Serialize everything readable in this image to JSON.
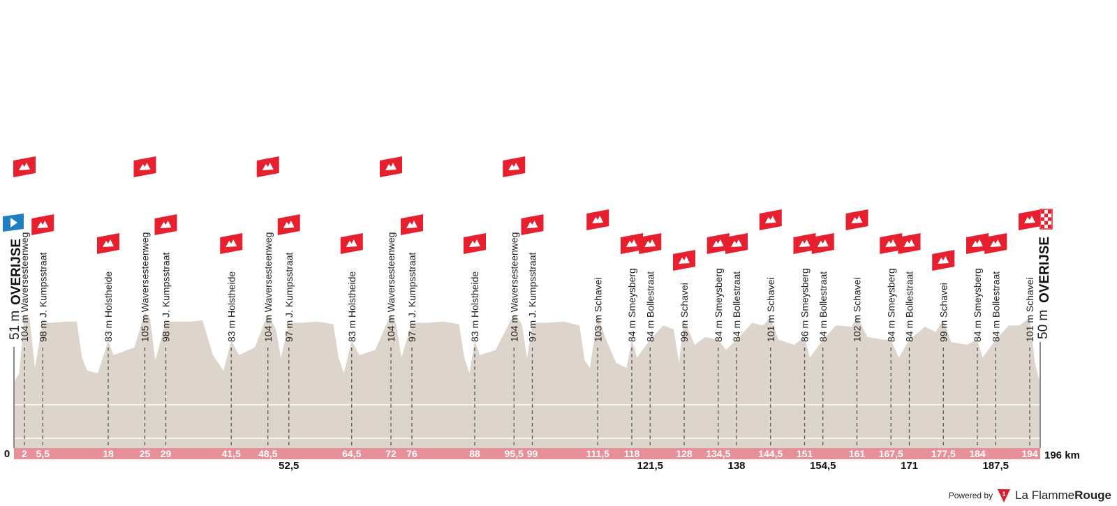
{
  "chart_data": {
    "type": "area",
    "title": "",
    "xlabel": "",
    "ylabel": "",
    "x_unit": "km",
    "total_distance_km": 196,
    "total_distance_label": "196 km",
    "zero_label": "0",
    "start": {
      "name": "OVERIJSE",
      "elevation_label": "51 m",
      "elevation_m": 51,
      "km": 0
    },
    "finish": {
      "name": "OVERIJSE",
      "elevation_label": "50 m",
      "elevation_m": 50,
      "km": 196
    },
    "ylim": [
      0,
      120
    ],
    "profile": [
      [
        0,
        51
      ],
      [
        1,
        58
      ],
      [
        2,
        104
      ],
      [
        3,
        100
      ],
      [
        4,
        62
      ],
      [
        5.5,
        98
      ],
      [
        7,
        97
      ],
      [
        10,
        98
      ],
      [
        12,
        98
      ],
      [
        13,
        70
      ],
      [
        14,
        60
      ],
      [
        16,
        58
      ],
      [
        18,
        83
      ],
      [
        19,
        72
      ],
      [
        21,
        75
      ],
      [
        23,
        78
      ],
      [
        25,
        105
      ],
      [
        26,
        100
      ],
      [
        27,
        68
      ],
      [
        29,
        98
      ],
      [
        31,
        98
      ],
      [
        34,
        98
      ],
      [
        36,
        99
      ],
      [
        38,
        72
      ],
      [
        40,
        60
      ],
      [
        41.5,
        83
      ],
      [
        43,
        72
      ],
      [
        46,
        78
      ],
      [
        48.5,
        104
      ],
      [
        50,
        92
      ],
      [
        51,
        70
      ],
      [
        52.5,
        97
      ],
      [
        55,
        97
      ],
      [
        58,
        98
      ],
      [
        61,
        96
      ],
      [
        62,
        70
      ],
      [
        63,
        58
      ],
      [
        64.5,
        83
      ],
      [
        66,
        72
      ],
      [
        69,
        76
      ],
      [
        72,
        104
      ],
      [
        73,
        96
      ],
      [
        74,
        70
      ],
      [
        76,
        97
      ],
      [
        79,
        97
      ],
      [
        82,
        98
      ],
      [
        85,
        96
      ],
      [
        86,
        70
      ],
      [
        87,
        58
      ],
      [
        88,
        83
      ],
      [
        89,
        72
      ],
      [
        92,
        76
      ],
      [
        95.5,
        104
      ],
      [
        97,
        96
      ],
      [
        98,
        70
      ],
      [
        99,
        97
      ],
      [
        102,
        97
      ],
      [
        105,
        98
      ],
      [
        108,
        95
      ],
      [
        109,
        68
      ],
      [
        110,
        62
      ],
      [
        111.5,
        103
      ],
      [
        113,
        85
      ],
      [
        115,
        66
      ],
      [
        117,
        62
      ],
      [
        118,
        84
      ],
      [
        119,
        70
      ],
      [
        121.5,
        84
      ],
      [
        124,
        95
      ],
      [
        126,
        92
      ],
      [
        127,
        66
      ],
      [
        128,
        99
      ],
      [
        130,
        80
      ],
      [
        132,
        86
      ],
      [
        134.5,
        84
      ],
      [
        136,
        76
      ],
      [
        138,
        84
      ],
      [
        141,
        97
      ],
      [
        143,
        95
      ],
      [
        144.5,
        101
      ],
      [
        146,
        84
      ],
      [
        149,
        80
      ],
      [
        151,
        86
      ],
      [
        152,
        70
      ],
      [
        154.5,
        84
      ],
      [
        157,
        95
      ],
      [
        160,
        94
      ],
      [
        161,
        102
      ],
      [
        163,
        86
      ],
      [
        166,
        84
      ],
      [
        167.5,
        84
      ],
      [
        169,
        70
      ],
      [
        171,
        84
      ],
      [
        174,
        94
      ],
      [
        176,
        90
      ],
      [
        177.5,
        99
      ],
      [
        179,
        82
      ],
      [
        182,
        80
      ],
      [
        184,
        84
      ],
      [
        185,
        70
      ],
      [
        187.5,
        84
      ],
      [
        190,
        95
      ],
      [
        192,
        95
      ],
      [
        194,
        101
      ],
      [
        195,
        66
      ],
      [
        196,
        50
      ]
    ],
    "climbs": [
      {
        "km": 2,
        "label": "104 m Waversesteenweg",
        "km_label": "2",
        "row": "top",
        "flag_tier": "high"
      },
      {
        "km": 5.5,
        "label": "98 m J. Kumpsstraat",
        "km_label": "5,5",
        "row": "top",
        "flag_tier": "mid"
      },
      {
        "km": 18,
        "label": "83 m Holstheide",
        "km_label": "18",
        "row": "top",
        "flag_tier": "low"
      },
      {
        "km": 25,
        "label": "105 m Waversesteenweg",
        "km_label": "25",
        "row": "top",
        "flag_tier": "high"
      },
      {
        "km": 29,
        "label": "98 m J. Kumpsstraat",
        "km_label": "29",
        "row": "top",
        "flag_tier": "mid"
      },
      {
        "km": 41.5,
        "label": "83 m Holstheide",
        "km_label": "41,5",
        "row": "top",
        "flag_tier": "low"
      },
      {
        "km": 48.5,
        "label": "104 m Waversesteenweg",
        "km_label": "48,5",
        "row": "top",
        "flag_tier": "high"
      },
      {
        "km": 52.5,
        "label": "97 m J. Kumpsstraat",
        "km_label": "52,5",
        "row": "bottom",
        "flag_tier": "mid"
      },
      {
        "km": 64.5,
        "label": "83 m Holstheide",
        "km_label": "64,5",
        "row": "top",
        "flag_tier": "low"
      },
      {
        "km": 72,
        "label": "104 m Waversesteenweg",
        "km_label": "72",
        "row": "top",
        "flag_tier": "high"
      },
      {
        "km": 76,
        "label": "97 m J. Kumpsstraat",
        "km_label": "76",
        "row": "top",
        "flag_tier": "mid"
      },
      {
        "km": 88,
        "label": "83 m Holstheide",
        "km_label": "88",
        "row": "top",
        "flag_tier": "low"
      },
      {
        "km": 95.5,
        "label": "104 m Waversesteenweg",
        "km_label": "95,5",
        "row": "top",
        "flag_tier": "high"
      },
      {
        "km": 99,
        "label": "97 m J. Kumpsstraat",
        "km_label": "99",
        "row": "top",
        "flag_tier": "mid"
      },
      {
        "km": 111.5,
        "label": "103 m Schavei",
        "km_label": "111,5",
        "row": "top",
        "flag_tier": "mid2"
      },
      {
        "km": 118,
        "label": "84 m Smeysberg",
        "km_label": "118",
        "row": "top",
        "flag_tier": "low"
      },
      {
        "km": 121.5,
        "label": "84 m Bollestraat",
        "km_label": "121,5",
        "row": "bottom",
        "flag_tier": "low"
      },
      {
        "km": 128,
        "label": "99 m Schavei",
        "km_label": "128",
        "row": "top",
        "flag_tier": "lowest"
      },
      {
        "km": 134.5,
        "label": "84 m Smeysberg",
        "km_label": "134,5",
        "row": "top",
        "flag_tier": "low"
      },
      {
        "km": 138,
        "label": "84 m Bollestraat",
        "km_label": "138",
        "row": "bottom",
        "flag_tier": "low"
      },
      {
        "km": 144.5,
        "label": "101 m Schavei",
        "km_label": "144,5",
        "row": "top",
        "flag_tier": "mid2"
      },
      {
        "km": 151,
        "label": "86 m Smeysberg",
        "km_label": "151",
        "row": "top",
        "flag_tier": "low"
      },
      {
        "km": 154.5,
        "label": "84 m Bollestraat",
        "km_label": "154,5",
        "row": "bottom",
        "flag_tier": "low"
      },
      {
        "km": 161,
        "label": "102 m Schavei",
        "km_label": "161",
        "row": "top",
        "flag_tier": "mid2"
      },
      {
        "km": 167.5,
        "label": "84 m Smeysberg",
        "km_label": "167,5",
        "row": "top",
        "flag_tier": "low"
      },
      {
        "km": 171,
        "label": "84 m Bollestraat",
        "km_label": "171",
        "row": "bottom",
        "flag_tier": "low"
      },
      {
        "km": 177.5,
        "label": "99 m Schavei",
        "km_label": "177,5",
        "row": "top",
        "flag_tier": "lowest"
      },
      {
        "km": 184,
        "label": "84 m Smeysberg",
        "km_label": "184",
        "row": "top",
        "flag_tier": "low"
      },
      {
        "km": 187.5,
        "label": "84 m Bollestraat",
        "km_label": "187,5",
        "row": "bottom",
        "flag_tier": "low"
      },
      {
        "km": 194,
        "label": "101 m Schavei",
        "km_label": "194",
        "row": "top",
        "flag_tier": "mid2"
      }
    ],
    "grid": true,
    "legend": "none"
  },
  "colors": {
    "profile_fill": "#ddd5cb",
    "km_bar": "#e8909a",
    "flag_red": "#e6202f",
    "start_flag": "#1f7fc1",
    "axis": "#888888",
    "dash": "#555555",
    "brand_red": "#d81e2c"
  },
  "icons": {
    "climb": "mountain-flag-icon",
    "start": "start-flag-icon",
    "finish": "finish-flag-icon",
    "brand": "la-flamme-rouge-logo-icon"
  },
  "credit": {
    "powered_by": "Powered by",
    "brand_part1": "La Flamme",
    "brand_part2": "Rouge"
  }
}
